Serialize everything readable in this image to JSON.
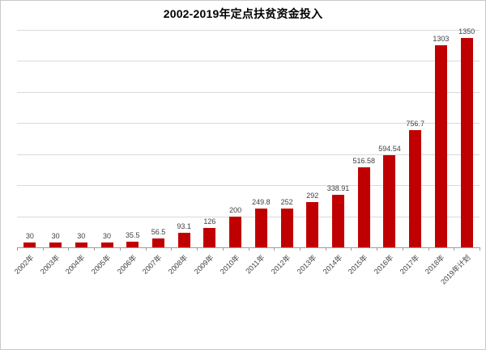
{
  "window": {
    "background": "#ffffff",
    "border_color": "#c9c9c9"
  },
  "chart_data": {
    "type": "bar",
    "title": "2002-2019年定点扶贫资金投入",
    "categories": [
      "2002年",
      "2003年",
      "2004年",
      "2005年",
      "2006年",
      "2007年",
      "2008年",
      "2009年",
      "2010年",
      "2011年",
      "2012年",
      "2013年",
      "2014年",
      "2015年",
      "2016年",
      "2017年",
      "2018年",
      "2019年计划"
    ],
    "values": [
      30,
      30,
      30,
      30,
      35.5,
      56.5,
      93.1,
      126,
      200,
      249.8,
      252,
      292,
      338.91,
      516.58,
      594.54,
      756.7,
      1303,
      1350
    ],
    "data_labels": [
      "30",
      "30",
      "30",
      "30",
      "35.5",
      "56.5",
      "93.1",
      "126",
      "200",
      "249.8",
      "252",
      "292",
      "338.91",
      "516.58",
      "594.54",
      "756.7",
      "1303",
      "1350"
    ],
    "xlabel": "",
    "ylabel": "",
    "ylim": [
      0,
      1400
    ],
    "gridline_interval": 200,
    "grid": true,
    "y_tick_labels_shown": false,
    "legend_position": "none",
    "bar_color": "#c00000",
    "label_color": "#404040",
    "gridline_color": "#d9d9d9",
    "axis_color": "#9b9b9b",
    "title_color": "#000000"
  }
}
